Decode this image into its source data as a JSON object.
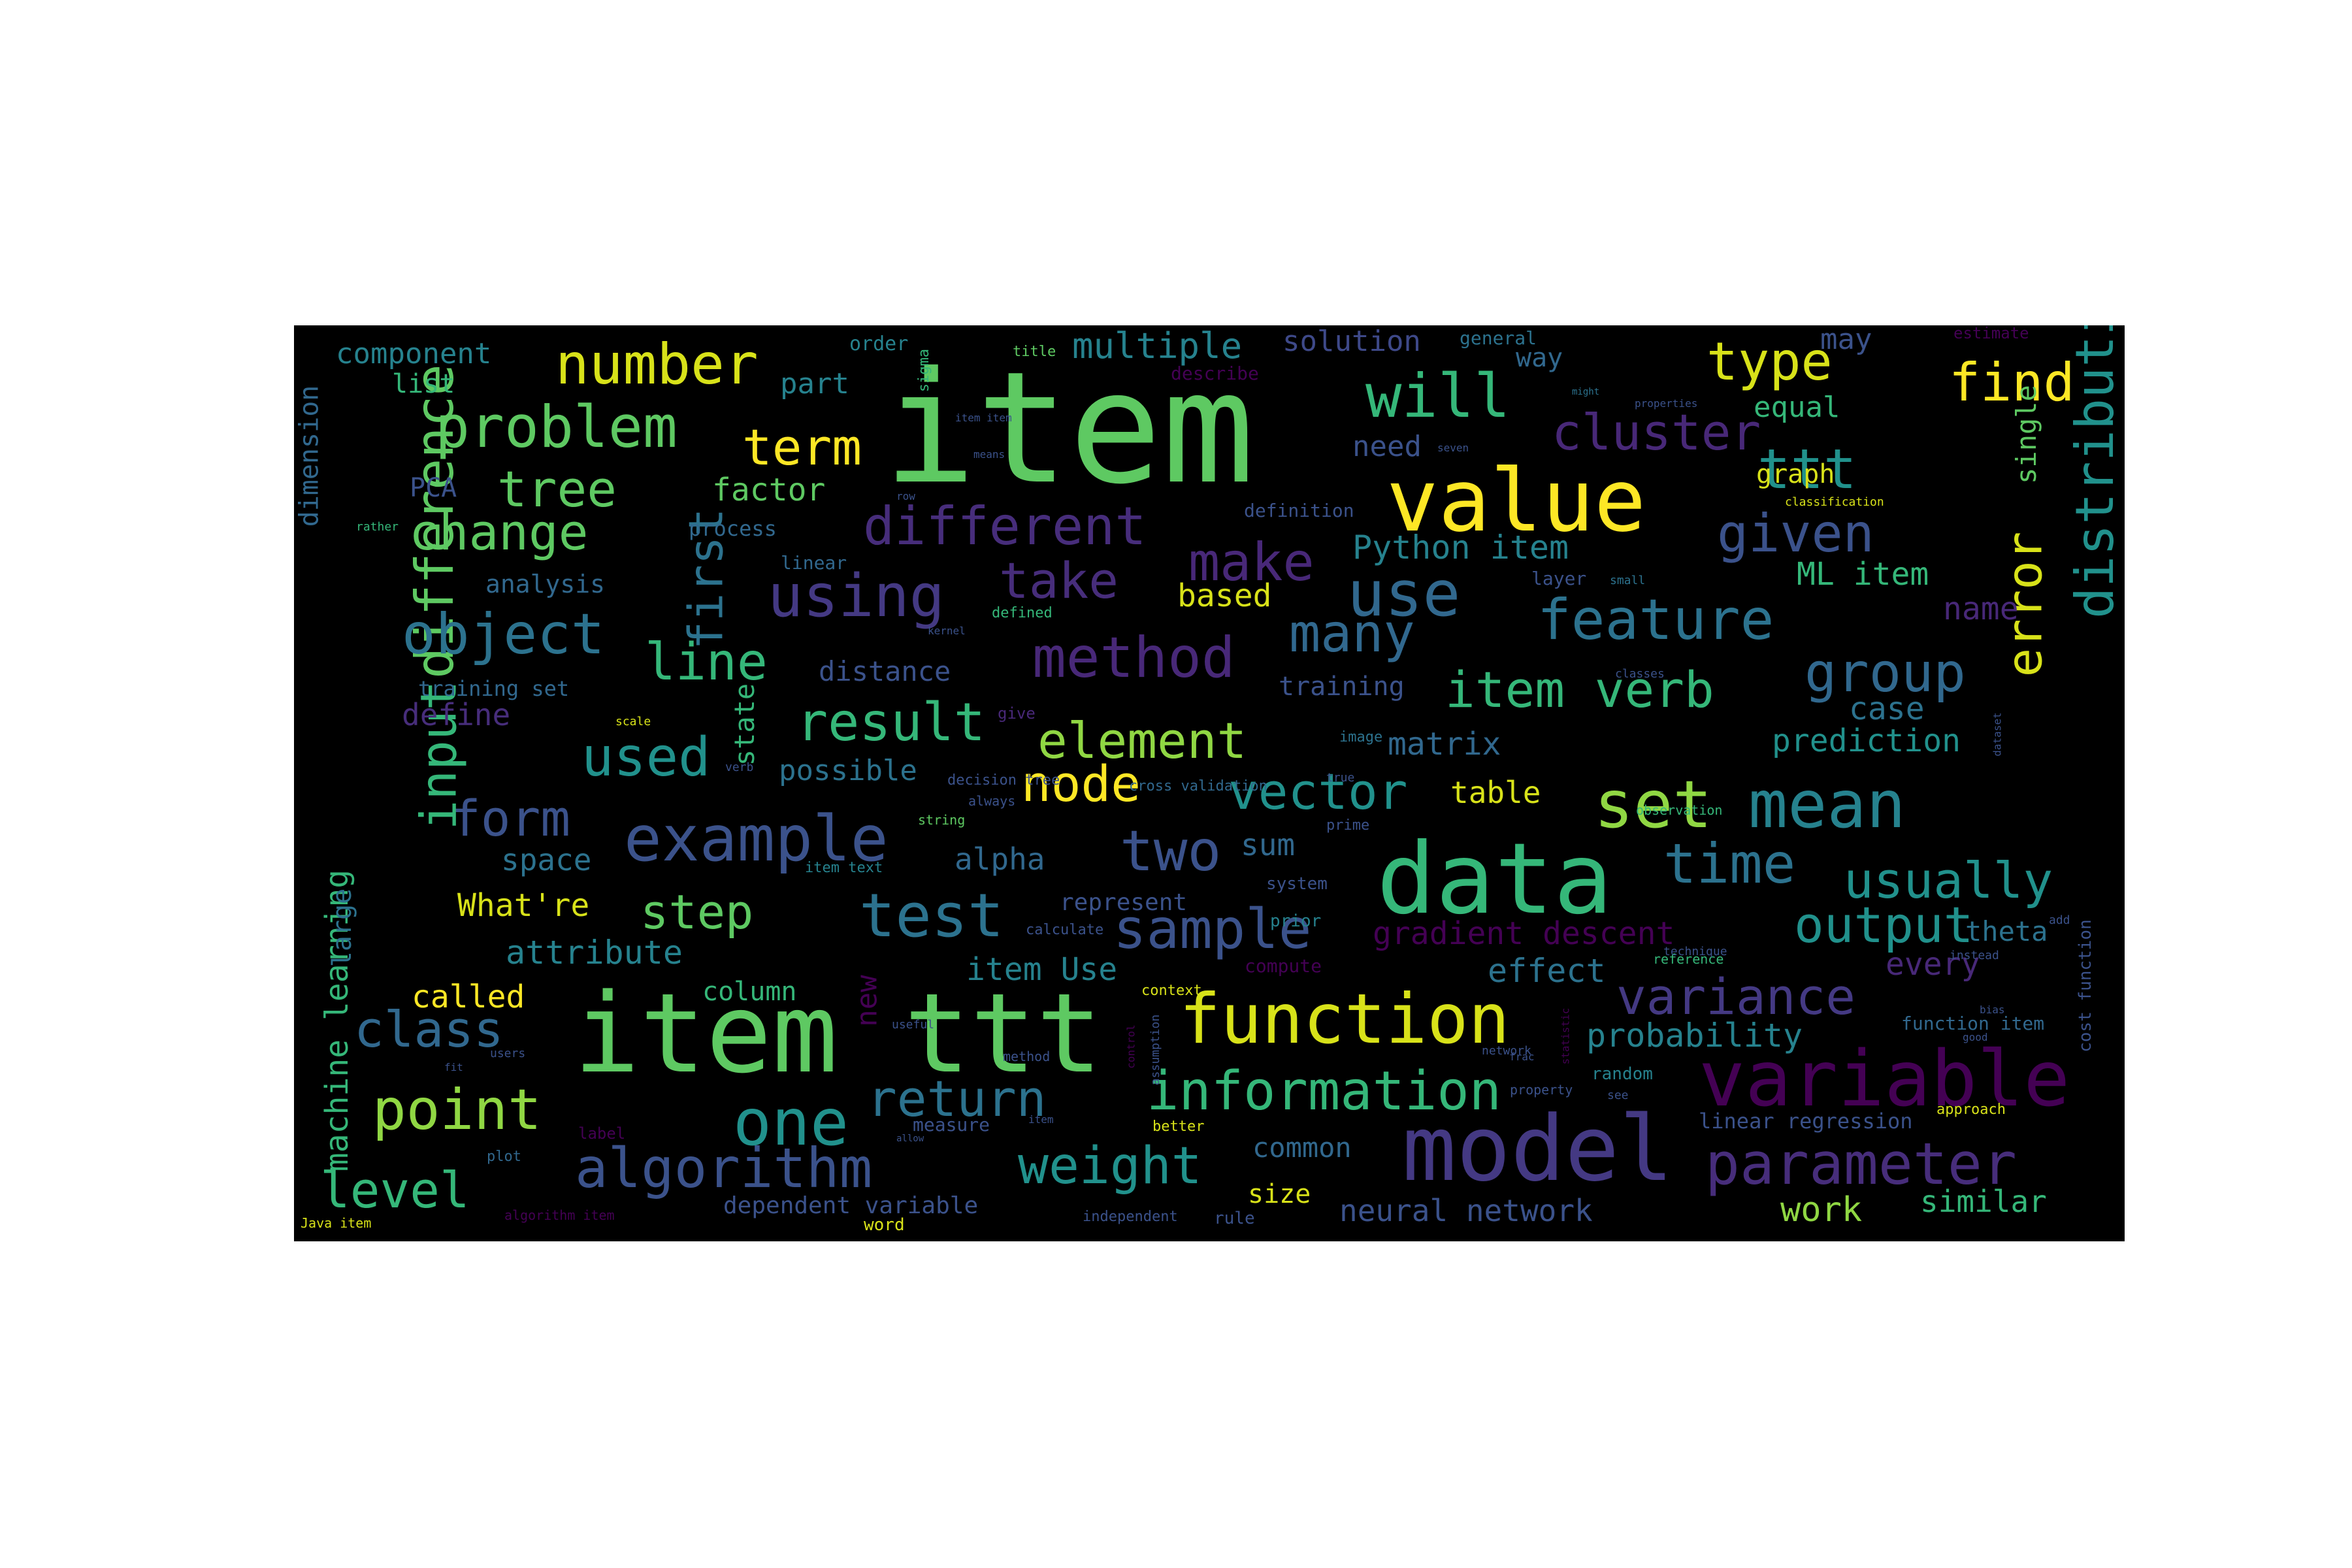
{
  "colors": {
    "background": "#000000",
    "page": "#ffffff",
    "palette": [
      "#5ec962",
      "#fde725",
      "#21918c",
      "#3b528b",
      "#440154",
      "#31688e",
      "#35b779",
      "#443983",
      "#90d743",
      "#26828e"
    ]
  },
  "words": [
    {
      "t": "item",
      "c": "#5ec962"
    },
    {
      "t": "item ttt",
      "c": "#5ec962"
    },
    {
      "t": "data",
      "c": "#35b779"
    },
    {
      "t": "model",
      "c": "#443983"
    },
    {
      "t": "value",
      "c": "#fde725"
    },
    {
      "t": "variable",
      "c": "#440154"
    },
    {
      "t": "function",
      "c": "#d8e219"
    },
    {
      "t": "set",
      "c": "#90d743"
    },
    {
      "t": "mean",
      "c": "#26828e"
    },
    {
      "t": "one",
      "c": "#21918c"
    },
    {
      "t": "example",
      "c": "#3b528b"
    },
    {
      "t": "parameter",
      "c": "#472d7b"
    },
    {
      "t": "test",
      "c": "#2c728e"
    },
    {
      "t": "will",
      "c": "#35b779"
    },
    {
      "t": "problem",
      "c": "#5ec962"
    },
    {
      "t": "number",
      "c": "#d8e219"
    },
    {
      "t": "method",
      "c": "#482878"
    },
    {
      "t": "use",
      "c": "#31688e"
    },
    {
      "t": "difference",
      "c": "#5ec962"
    },
    {
      "t": "distribution",
      "c": "#21918c"
    },
    {
      "t": "algorithm",
      "c": "#3b528b"
    },
    {
      "t": "information",
      "c": "#35b779"
    },
    {
      "t": "object",
      "c": "#2c728e"
    },
    {
      "t": "using",
      "c": "#443983"
    },
    {
      "t": "different",
      "c": "#472d7b"
    },
    {
      "t": "feature",
      "c": "#2c728e"
    },
    {
      "t": "group",
      "c": "#31688e"
    },
    {
      "t": "cluster",
      "c": "#482878"
    },
    {
      "t": "type",
      "c": "#d8e219"
    },
    {
      "t": "find",
      "c": "#fde725"
    },
    {
      "t": "ttt",
      "c": "#21918c"
    },
    {
      "t": "point",
      "c": "#90d743"
    },
    {
      "t": "class",
      "c": "#31688e"
    },
    {
      "t": "two",
      "c": "#3b528b"
    },
    {
      "t": "time",
      "c": "#2c728e"
    },
    {
      "t": "usually",
      "c": "#21918c"
    },
    {
      "t": "output",
      "c": "#21918c"
    },
    {
      "t": "variance",
      "c": "#443983"
    },
    {
      "t": "sample",
      "c": "#3b528b"
    },
    {
      "t": "weight",
      "c": "#21918c"
    },
    {
      "t": "return",
      "c": "#2c728e"
    },
    {
      "t": "result",
      "c": "#35b779"
    },
    {
      "t": "element",
      "c": "#90d743"
    },
    {
      "t": "vector",
      "c": "#21918c"
    },
    {
      "t": "node",
      "c": "#fde725"
    },
    {
      "t": "used",
      "c": "#21918c"
    },
    {
      "t": "form",
      "c": "#3b528b"
    },
    {
      "t": "input",
      "c": "#35b779"
    },
    {
      "t": "item verb",
      "c": "#35b779"
    },
    {
      "t": "given",
      "c": "#3b528b"
    },
    {
      "t": "many",
      "c": "#31688e"
    },
    {
      "t": "make",
      "c": "#482878"
    },
    {
      "t": "take",
      "c": "#472d7b"
    },
    {
      "t": "line",
      "c": "#35b779"
    },
    {
      "t": "first",
      "c": "#2c728e"
    },
    {
      "t": "change",
      "c": "#5ec962"
    },
    {
      "t": "tree",
      "c": "#5ec962"
    },
    {
      "t": "term",
      "c": "#fde725"
    },
    {
      "t": "level",
      "c": "#35b779"
    },
    {
      "t": "error",
      "c": "#d8e219"
    },
    {
      "t": "step",
      "c": "#5ec962"
    },
    {
      "t": "component",
      "c": "#26828e"
    },
    {
      "t": "multiple",
      "c": "#26828e"
    },
    {
      "t": "solution",
      "c": "#3e4989"
    },
    {
      "t": "list",
      "c": "#35b779"
    },
    {
      "t": "part",
      "c": "#26828e"
    },
    {
      "t": "factor",
      "c": "#5ec962"
    },
    {
      "t": "PCA",
      "c": "#3b528b"
    },
    {
      "t": "dimension",
      "c": "#31688e"
    },
    {
      "t": "analysis",
      "c": "#31688e"
    },
    {
      "t": "process",
      "c": "#31688e"
    },
    {
      "t": "linear",
      "c": "#31688e"
    },
    {
      "t": "Python item",
      "c": "#26828e"
    },
    {
      "t": "ML item",
      "c": "#35b779"
    },
    {
      "t": "based",
      "c": "#d8e219"
    },
    {
      "t": "name",
      "c": "#482878"
    },
    {
      "t": "case",
      "c": "#2c728e"
    },
    {
      "t": "prediction",
      "c": "#21918c"
    },
    {
      "t": "single",
      "c": "#5ec962"
    },
    {
      "t": "machine learning",
      "c": "#35b779"
    },
    {
      "t": "large",
      "c": "#2c728e"
    },
    {
      "t": "attribute",
      "c": "#26828e"
    },
    {
      "t": "called",
      "c": "#fde725"
    },
    {
      "t": "What're",
      "c": "#d8e219"
    },
    {
      "t": "space",
      "c": "#2c728e"
    },
    {
      "t": "define",
      "c": "#472d7b"
    },
    {
      "t": "training set",
      "c": "#31688e"
    },
    {
      "t": "distance",
      "c": "#3b528b"
    },
    {
      "t": "possible",
      "c": "#2c728e"
    },
    {
      "t": "state",
      "c": "#35b779"
    },
    {
      "t": "alpha",
      "c": "#31688e"
    },
    {
      "t": "sum",
      "c": "#31688e"
    },
    {
      "t": "item Use",
      "c": "#26828e"
    },
    {
      "t": "column",
      "c": "#35b779"
    },
    {
      "t": "new",
      "c": "#440154"
    },
    {
      "t": "effect",
      "c": "#2c728e"
    },
    {
      "t": "gradient descent",
      "c": "#440154"
    },
    {
      "t": "every",
      "c": "#482878"
    },
    {
      "t": "theta",
      "c": "#2c728e"
    },
    {
      "t": "probability",
      "c": "#26828e"
    },
    {
      "t": "common",
      "c": "#31688e"
    },
    {
      "t": "size",
      "c": "#d8e219"
    },
    {
      "t": "neural network",
      "c": "#3b528b"
    },
    {
      "t": "work",
      "c": "#90d743"
    },
    {
      "t": "similar",
      "c": "#35b779"
    },
    {
      "t": "dependent variable",
      "c": "#3b528b"
    },
    {
      "t": "matrix",
      "c": "#31688e"
    },
    {
      "t": "table",
      "c": "#d8e219"
    },
    {
      "t": "training",
      "c": "#3b528b"
    },
    {
      "t": "equal",
      "c": "#35b779"
    },
    {
      "t": "graph",
      "c": "#d8e219"
    },
    {
      "t": "way",
      "c": "#31688e"
    },
    {
      "t": "need",
      "c": "#3b528b"
    },
    {
      "t": "may",
      "c": "#3b528b"
    },
    {
      "t": "represent",
      "c": "#3b528b"
    },
    {
      "t": "linear regression",
      "c": "#3b528b"
    },
    {
      "t": "function item",
      "c": "#31688e"
    },
    {
      "t": "cost function",
      "c": "#3b528b"
    },
    {
      "t": "order",
      "c": "#26828e"
    },
    {
      "t": "definition",
      "c": "#3b528b"
    },
    {
      "t": "layer",
      "c": "#3b528b"
    },
    {
      "t": "general",
      "c": "#2c728e"
    },
    {
      "t": "estimate",
      "c": "#440154"
    },
    {
      "t": "describe",
      "c": "#440154"
    },
    {
      "t": "prior",
      "c": "#26828e"
    },
    {
      "t": "random",
      "c": "#26828e"
    },
    {
      "t": "word",
      "c": "#d8e219"
    },
    {
      "t": "label",
      "c": "#440154"
    },
    {
      "t": "plot",
      "c": "#31688e"
    },
    {
      "t": "measure",
      "c": "#3b528b"
    },
    {
      "t": "rule",
      "c": "#3b528b"
    },
    {
      "t": "independent",
      "c": "#3b528b"
    },
    {
      "t": "system",
      "c": "#3b528b"
    },
    {
      "t": "calculate",
      "c": "#3b528b"
    },
    {
      "t": "decision tree",
      "c": "#3b528b"
    },
    {
      "t": "cross validation",
      "c": "#31688e"
    },
    {
      "t": "always",
      "c": "#3b528b"
    },
    {
      "t": "string",
      "c": "#5ec962"
    },
    {
      "t": "give",
      "c": "#482878"
    },
    {
      "t": "observation",
      "c": "#35b779"
    },
    {
      "t": "method",
      "c": "#3b528b"
    },
    {
      "t": "approach",
      "c": "#d8e219"
    },
    {
      "t": "property",
      "c": "#3b528b"
    },
    {
      "t": "network",
      "c": "#3b528b"
    },
    {
      "t": "better",
      "c": "#d8e219"
    },
    {
      "t": "compute",
      "c": "#440154"
    },
    {
      "t": "reference",
      "c": "#35b779"
    },
    {
      "t": "item text",
      "c": "#26828e"
    },
    {
      "t": "Java item",
      "c": "#d8e219"
    },
    {
      "t": "algorithm item",
      "c": "#440154"
    },
    {
      "t": "scale",
      "c": "#d8e219"
    },
    {
      "t": "classification",
      "c": "#d8e219"
    },
    {
      "t": "properties",
      "c": "#3b528b"
    },
    {
      "t": "technique",
      "c": "#3b528b"
    },
    {
      "t": "instead",
      "c": "#3b528b"
    },
    {
      "t": "control",
      "c": "#440154"
    },
    {
      "t": "dataset",
      "c": "#3b528b"
    },
    {
      "t": "bias",
      "c": "#3b528b"
    },
    {
      "t": "small",
      "c": "#2c728e"
    },
    {
      "t": "image",
      "c": "#2c728e"
    },
    {
      "t": "classes",
      "c": "#3b528b"
    },
    {
      "t": "defined",
      "c": "#35b779"
    },
    {
      "t": "title",
      "c": "#5ec962"
    },
    {
      "t": "sigma",
      "c": "#35b779"
    },
    {
      "t": "rather",
      "c": "#35b779"
    },
    {
      "t": "add",
      "c": "#3b528b"
    },
    {
      "t": "prime",
      "c": "#3b528b"
    },
    {
      "t": "useful",
      "c": "#3b528b"
    },
    {
      "t": "assumption",
      "c": "#3b528b"
    },
    {
      "t": "context",
      "c": "#d8e219"
    },
    {
      "t": "statistic",
      "c": "#440154"
    },
    {
      "t": "might",
      "c": "#2c728e"
    },
    {
      "t": "kernel",
      "c": "#3b528b"
    },
    {
      "t": "item",
      "c": "#3b528b"
    },
    {
      "t": "see",
      "c": "#3b528b"
    },
    {
      "t": "row",
      "c": "#3b528b"
    },
    {
      "t": "true",
      "c": "#3b528b"
    },
    {
      "t": "fit",
      "c": "#3b528b"
    },
    {
      "t": "allow",
      "c": "#3b528b"
    },
    {
      "t": "means",
      "c": "#3b528b"
    },
    {
      "t": "seven",
      "c": "#3b528b"
    },
    {
      "t": "verb",
      "c": "#3b528b"
    },
    {
      "t": "users",
      "c": "#3b528b"
    },
    {
      "t": "good",
      "c": "#3b528b"
    },
    {
      "t": "item item",
      "c": "#3b528b"
    },
    {
      "t": "frac",
      "c": "#3b528b"
    },
    {
      "t": "level",
      "c": "#3b528b"
    },
    {
      "t": "term item",
      "c": "#3b528b"
    }
  ]
}
